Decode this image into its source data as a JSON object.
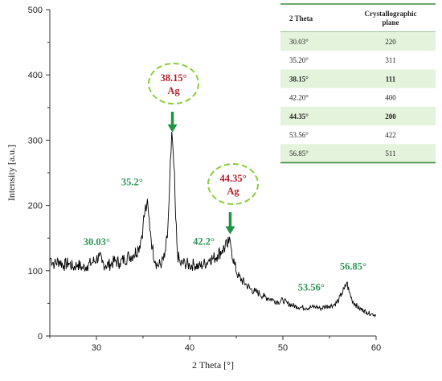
{
  "colors": {
    "line": "#000000",
    "peak_label": "#2e9459",
    "callout_text": "#b21e2a",
    "callout_border": "#8ccc3c",
    "arrow": "#1e9444",
    "table_row_shade": "#e4f4dc",
    "table_rule": "#3a8a3a"
  },
  "chart_data": {
    "type": "line",
    "title": "",
    "xlabel": "2 Theta [°]",
    "ylabel": "Intensity [a.u.]",
    "xlim": [
      25,
      60
    ],
    "ylim": [
      0,
      500
    ],
    "xticks": [
      "30",
      "40",
      "50",
      "60"
    ],
    "yticks": [
      "0",
      "100",
      "200",
      "300",
      "400",
      "500"
    ],
    "grid": false,
    "series": [
      {
        "x": [
          25,
          25.5,
          26,
          26.5,
          27,
          27.5,
          28,
          28.5,
          29,
          29.5,
          30,
          30.3,
          30.6,
          31,
          31.5,
          32,
          32.5,
          33,
          33.5,
          34,
          34.5,
          34.8,
          35,
          35.2,
          35.4,
          35.6,
          35.8,
          36,
          36.3,
          36.6,
          37,
          37.3,
          37.6,
          37.8,
          38,
          38.15,
          38.3,
          38.5,
          38.7,
          39,
          39.5,
          40,
          40.5,
          41,
          41.5,
          42,
          42.2,
          42.5,
          43,
          43.5,
          44,
          44.2,
          44.35,
          44.5,
          44.8,
          45.2,
          45.6,
          46,
          46.5,
          47,
          47.5,
          48,
          48.5,
          49,
          49.5,
          50,
          50.5,
          51,
          51.5,
          52,
          52.5,
          53,
          53.56,
          54,
          54.5,
          55,
          55.5,
          56,
          56.3,
          56.6,
          56.85,
          57.1,
          57.4,
          57.8,
          58.2,
          58.6,
          59,
          59.5,
          60
        ],
        "y": [
          120,
          110,
          115,
          108,
          112,
          105,
          110,
          104,
          108,
          112,
          118,
          122,
          112,
          108,
          110,
          115,
          112,
          118,
          122,
          125,
          135,
          150,
          170,
          190,
          200,
          185,
          160,
          135,
          115,
          108,
          112,
          120,
          150,
          210,
          280,
          302,
          260,
          180,
          125,
          110,
          112,
          108,
          110,
          106,
          110,
          115,
          120,
          118,
          125,
          132,
          138,
          142,
          146,
          132,
          110,
          92,
          85,
          80,
          72,
          68,
          65,
          60,
          58,
          55,
          52,
          55,
          50,
          47,
          45,
          44,
          43,
          44,
          45,
          42,
          45,
          46,
          48,
          55,
          65,
          72,
          82,
          68,
          56,
          48,
          42,
          40,
          36,
          34,
          32
        ]
      }
    ],
    "peak_labels": [
      {
        "text": "30.03°",
        "x": 30.03,
        "y": 122
      },
      {
        "text": "35.2°",
        "x": 35.2,
        "y": 200
      },
      {
        "text": "42.2°",
        "x": 42.2,
        "y": 120
      },
      {
        "text": "53.56°",
        "x": 53.56,
        "y": 45
      },
      {
        "text": "56.85°",
        "x": 56.85,
        "y": 82
      }
    ],
    "callouts": [
      {
        "value": "38.15°",
        "element": "Ag",
        "x": 38.15,
        "y": 302
      },
      {
        "value": "44.35°",
        "element": "Ag",
        "x": 44.35,
        "y": 146
      }
    ],
    "table": {
      "headers": [
        "2 Theta",
        "Crystallographic plane"
      ],
      "rows": [
        {
          "theta": "30.03°",
          "plane": "220",
          "shaded": true,
          "highlight": false
        },
        {
          "theta": "35.20°",
          "plane": "311",
          "shaded": false,
          "highlight": false
        },
        {
          "theta": "38.15°",
          "plane": "111",
          "shaded": true,
          "highlight": true
        },
        {
          "theta": "42.20°",
          "plane": "400",
          "shaded": false,
          "highlight": false
        },
        {
          "theta": "44.35°",
          "plane": "200",
          "shaded": true,
          "highlight": true
        },
        {
          "theta": "53.56°",
          "plane": "422",
          "shaded": false,
          "highlight": false
        },
        {
          "theta": "56.85°",
          "plane": "511",
          "shaded": true,
          "highlight": false
        }
      ]
    }
  }
}
